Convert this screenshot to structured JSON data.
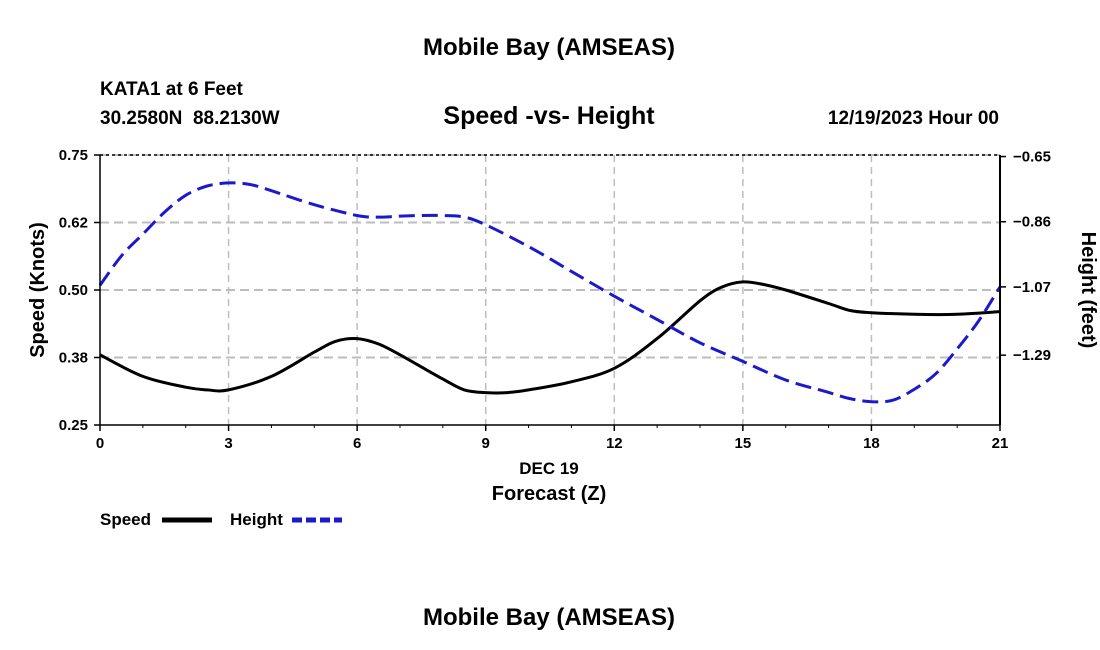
{
  "page": {
    "title": "Mobile Bay (AMSEAS)",
    "bottom_title": "Mobile Bay (AMSEAS)"
  },
  "station": {
    "name_line": "KATA1 at 6 Feet",
    "coords_line": "30.2580N  88.2130W"
  },
  "date_line": "12/19/2023 Hour 00",
  "colors": {
    "speed": "#000000",
    "height": "#1a1acc",
    "grid": "#bdbdbd"
  },
  "chart_data": {
    "type": "line",
    "title": "Speed -vs- Height",
    "xlabel_date": "DEC 19",
    "xlabel": "Forecast (Z)",
    "ylabel_left": "Speed (Knots)",
    "ylabel_right": "Height (feet)",
    "xlim": [
      0,
      21
    ],
    "ylim_left": [
      0.25,
      0.75
    ],
    "ylim_right": [
      -1.515,
      -0.645
    ],
    "x_ticks": [
      0,
      3,
      6,
      9,
      12,
      15,
      18,
      21
    ],
    "x_tick_labels": [
      "0",
      "3",
      "6",
      "9",
      "12",
      "15",
      "18",
      "21"
    ],
    "left_ticks": [
      0.25,
      0.375,
      0.5,
      0.625,
      0.75
    ],
    "left_tick_labels": [
      "0.25",
      "0.38",
      "0.50",
      "0.62",
      "0.75"
    ],
    "right_ticks": [
      -0.65,
      -0.86,
      -1.07,
      -1.29
    ],
    "right_tick_labels": [
      "-0.65",
      "-0.86",
      "-1.07",
      "-1.29"
    ],
    "grid": true,
    "series": [
      {
        "name": "Speed",
        "axis": "left",
        "style": "solid",
        "x": [
          0,
          1,
          2,
          2.5,
          3,
          4,
          5,
          5.5,
          6,
          6.5,
          7,
          8,
          8.5,
          9,
          9.5,
          10,
          11,
          12,
          13,
          14,
          14.5,
          15,
          15.5,
          16,
          17,
          17.5,
          18,
          19,
          20,
          21
        ],
        "values": [
          0.38,
          0.34,
          0.32,
          0.315,
          0.315,
          0.34,
          0.385,
          0.405,
          0.41,
          0.4,
          0.38,
          0.335,
          0.315,
          0.31,
          0.31,
          0.315,
          0.33,
          0.355,
          0.41,
          0.48,
          0.505,
          0.515,
          0.51,
          0.5,
          0.475,
          0.462,
          0.458,
          0.455,
          0.455,
          0.46
        ]
      },
      {
        "name": "Height",
        "axis": "right",
        "style": "dashed",
        "x": [
          0,
          0.5,
          1,
          1.5,
          2,
          2.5,
          3,
          3.5,
          4,
          5,
          6,
          6.5,
          7,
          7.5,
          8,
          8.5,
          9,
          10,
          11,
          12,
          13,
          14,
          15,
          16,
          17,
          17.5,
          18,
          18.5,
          19,
          19.5,
          20,
          20.5,
          21
        ],
        "values": [
          -1.065,
          -0.97,
          -0.9,
          -0.83,
          -0.775,
          -0.745,
          -0.735,
          -0.74,
          -0.76,
          -0.805,
          -0.84,
          -0.845,
          -0.842,
          -0.84,
          -0.84,
          -0.845,
          -0.87,
          -0.94,
          -1.02,
          -1.1,
          -1.175,
          -1.25,
          -1.31,
          -1.37,
          -1.41,
          -1.43,
          -1.44,
          -1.435,
          -1.4,
          -1.35,
          -1.27,
          -1.18,
          -1.07
        ]
      }
    ],
    "legend": [
      {
        "label": "Speed",
        "style": "solid"
      },
      {
        "label": "Height",
        "style": "dashed"
      }
    ]
  }
}
